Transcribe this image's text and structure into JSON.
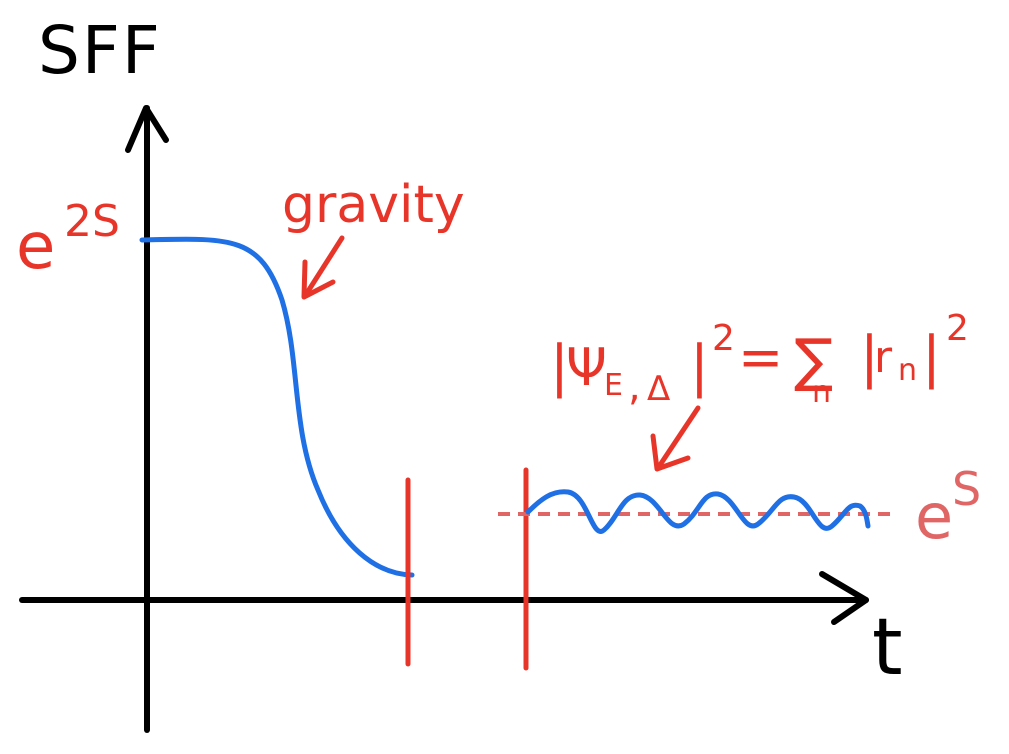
{
  "yaxis_label": "SFF",
  "xaxis_label": "t",
  "y_mark_label": {
    "base": "e",
    "exponent": "2S"
  },
  "gravity_label": "gravity",
  "plateau_label": {
    "base": "e",
    "exponent": "S"
  },
  "formula": {
    "lhs_bar_open": "|",
    "psi": "Ψ",
    "psi_subscript": "E",
    "comma": ",",
    "delta": "Δ",
    "lhs_bar_close": "|",
    "lhs_power": "2",
    "equals": "=",
    "sum": "∑",
    "sum_index": "n",
    "rhs_bar_open": "|",
    "r": "r",
    "r_subscript": "n",
    "rhs_bar_close": "|",
    "rhs_power": "2"
  },
  "colors": {
    "axes": "#000000",
    "annotation": "#e8352a",
    "curve": "#1f6fe5",
    "plateau_line": "#e06666"
  }
}
